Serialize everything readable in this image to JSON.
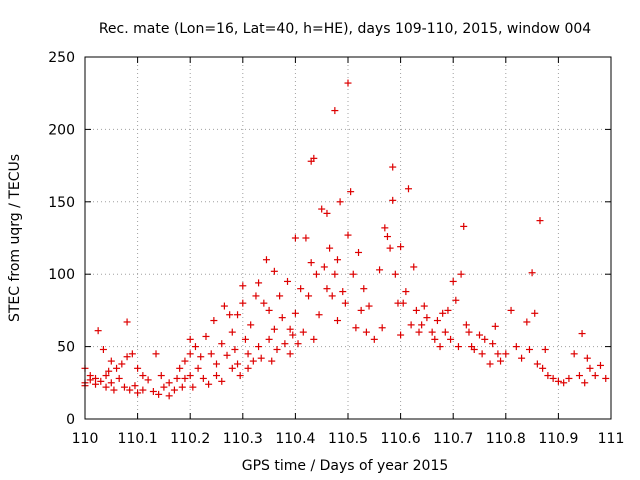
{
  "chart_data": {
    "type": "scatter",
    "title": "Rec. mate (Lon=16, Lat=40, h=HE), days 109-110, 2015, window 004",
    "xlabel": "GPS time / Days of year 2015",
    "ylabel": "STEC from uqrg / TECUs",
    "xlim": [
      110,
      111
    ],
    "ylim": [
      0,
      250
    ],
    "x_ticks": [
      110,
      110.1,
      110.2,
      110.3,
      110.4,
      110.5,
      110.6,
      110.7,
      110.8,
      110.9,
      111
    ],
    "x_tick_labels": [
      "110",
      "110.1",
      "110.2",
      "110.3",
      "110.4",
      "110.5",
      "110.6",
      "110.7",
      "110.8",
      "110.9",
      "111"
    ],
    "y_ticks": [
      0,
      50,
      100,
      150,
      200,
      250
    ],
    "y_tick_labels": [
      "0",
      "50",
      "100",
      "150",
      "200",
      "250"
    ],
    "grid": true,
    "marker": "plus",
    "color": "#dd0000",
    "points": [
      [
        110.0,
        35
      ],
      [
        110.0,
        25
      ],
      [
        110.0,
        23
      ],
      [
        110.01,
        30
      ],
      [
        110.01,
        27
      ],
      [
        110.02,
        24
      ],
      [
        110.02,
        28
      ],
      [
        110.025,
        61
      ],
      [
        110.03,
        26
      ],
      [
        110.035,
        48
      ],
      [
        110.04,
        22
      ],
      [
        110.04,
        30
      ],
      [
        110.045,
        33
      ],
      [
        110.05,
        40
      ],
      [
        110.05,
        25
      ],
      [
        110.055,
        20
      ],
      [
        110.06,
        35
      ],
      [
        110.065,
        28
      ],
      [
        110.07,
        38
      ],
      [
        110.075,
        22
      ],
      [
        110.08,
        67
      ],
      [
        110.08,
        43
      ],
      [
        110.085,
        20
      ],
      [
        110.09,
        45
      ],
      [
        110.095,
        23
      ],
      [
        110.1,
        35
      ],
      [
        110.1,
        18
      ],
      [
        110.11,
        30
      ],
      [
        110.11,
        20
      ],
      [
        110.12,
        27
      ],
      [
        110.13,
        19
      ],
      [
        110.135,
        45
      ],
      [
        110.14,
        17
      ],
      [
        110.145,
        30
      ],
      [
        110.15,
        22
      ],
      [
        110.16,
        16
      ],
      [
        110.16,
        25
      ],
      [
        110.17,
        20
      ],
      [
        110.175,
        28
      ],
      [
        110.18,
        35
      ],
      [
        110.185,
        22
      ],
      [
        110.19,
        40
      ],
      [
        110.19,
        28
      ],
      [
        110.2,
        55
      ],
      [
        110.2,
        45
      ],
      [
        110.2,
        30
      ],
      [
        110.205,
        22
      ],
      [
        110.21,
        50
      ],
      [
        110.215,
        35
      ],
      [
        110.22,
        43
      ],
      [
        110.225,
        28
      ],
      [
        110.23,
        57
      ],
      [
        110.235,
        24
      ],
      [
        110.24,
        45
      ],
      [
        110.245,
        68
      ],
      [
        110.25,
        38
      ],
      [
        110.25,
        30
      ],
      [
        110.26,
        52
      ],
      [
        110.26,
        26
      ],
      [
        110.265,
        78
      ],
      [
        110.27,
        44
      ],
      [
        110.275,
        72
      ],
      [
        110.28,
        60
      ],
      [
        110.28,
        35
      ],
      [
        110.285,
        48
      ],
      [
        110.29,
        72
      ],
      [
        110.29,
        38
      ],
      [
        110.295,
        30
      ],
      [
        110.3,
        92
      ],
      [
        110.3,
        80
      ],
      [
        110.305,
        55
      ],
      [
        110.31,
        45
      ],
      [
        110.31,
        35
      ],
      [
        110.315,
        65
      ],
      [
        110.32,
        40
      ],
      [
        110.325,
        85
      ],
      [
        110.33,
        94
      ],
      [
        110.33,
        50
      ],
      [
        110.335,
        42
      ],
      [
        110.34,
        80
      ],
      [
        110.345,
        110
      ],
      [
        110.35,
        75
      ],
      [
        110.35,
        55
      ],
      [
        110.355,
        40
      ],
      [
        110.36,
        102
      ],
      [
        110.36,
        62
      ],
      [
        110.365,
        48
      ],
      [
        110.37,
        85
      ],
      [
        110.375,
        70
      ],
      [
        110.38,
        52
      ],
      [
        110.385,
        95
      ],
      [
        110.39,
        62
      ],
      [
        110.39,
        45
      ],
      [
        110.395,
        58
      ],
      [
        110.4,
        125
      ],
      [
        110.4,
        73
      ],
      [
        110.405,
        52
      ],
      [
        110.41,
        90
      ],
      [
        110.415,
        60
      ],
      [
        110.42,
        125
      ],
      [
        110.425,
        85
      ],
      [
        110.43,
        178
      ],
      [
        110.43,
        108
      ],
      [
        110.435,
        180
      ],
      [
        110.435,
        55
      ],
      [
        110.44,
        100
      ],
      [
        110.445,
        72
      ],
      [
        110.45,
        145
      ],
      [
        110.455,
        105
      ],
      [
        110.46,
        142
      ],
      [
        110.46,
        90
      ],
      [
        110.465,
        118
      ],
      [
        110.47,
        85
      ],
      [
        110.475,
        213
      ],
      [
        110.475,
        100
      ],
      [
        110.48,
        110
      ],
      [
        110.48,
        68
      ],
      [
        110.485,
        150
      ],
      [
        110.49,
        88
      ],
      [
        110.495,
        80
      ],
      [
        110.5,
        232
      ],
      [
        110.5,
        127
      ],
      [
        110.505,
        157
      ],
      [
        110.51,
        100
      ],
      [
        110.515,
        63
      ],
      [
        110.52,
        115
      ],
      [
        110.525,
        75
      ],
      [
        110.53,
        90
      ],
      [
        110.535,
        60
      ],
      [
        110.54,
        78
      ],
      [
        110.55,
        55
      ],
      [
        110.56,
        103
      ],
      [
        110.565,
        63
      ],
      [
        110.57,
        132
      ],
      [
        110.575,
        126
      ],
      [
        110.58,
        118
      ],
      [
        110.585,
        174
      ],
      [
        110.585,
        151
      ],
      [
        110.59,
        100
      ],
      [
        110.595,
        80
      ],
      [
        110.6,
        119
      ],
      [
        110.6,
        58
      ],
      [
        110.605,
        80
      ],
      [
        110.61,
        88
      ],
      [
        110.615,
        159
      ],
      [
        110.62,
        65
      ],
      [
        110.625,
        105
      ],
      [
        110.63,
        75
      ],
      [
        110.635,
        60
      ],
      [
        110.64,
        65
      ],
      [
        110.645,
        78
      ],
      [
        110.65,
        70
      ],
      [
        110.66,
        60
      ],
      [
        110.665,
        55
      ],
      [
        110.67,
        68
      ],
      [
        110.675,
        50
      ],
      [
        110.68,
        73
      ],
      [
        110.685,
        60
      ],
      [
        110.69,
        75
      ],
      [
        110.695,
        55
      ],
      [
        110.7,
        95
      ],
      [
        110.705,
        82
      ],
      [
        110.71,
        50
      ],
      [
        110.715,
        100
      ],
      [
        110.72,
        133
      ],
      [
        110.725,
        65
      ],
      [
        110.73,
        60
      ],
      [
        110.735,
        50
      ],
      [
        110.74,
        48
      ],
      [
        110.75,
        58
      ],
      [
        110.755,
        45
      ],
      [
        110.76,
        55
      ],
      [
        110.77,
        38
      ],
      [
        110.775,
        52
      ],
      [
        110.78,
        64
      ],
      [
        110.785,
        45
      ],
      [
        110.79,
        40
      ],
      [
        110.8,
        45
      ],
      [
        110.81,
        75
      ],
      [
        110.82,
        50
      ],
      [
        110.83,
        42
      ],
      [
        110.84,
        67
      ],
      [
        110.845,
        48
      ],
      [
        110.85,
        101
      ],
      [
        110.855,
        73
      ],
      [
        110.86,
        38
      ],
      [
        110.865,
        137
      ],
      [
        110.87,
        35
      ],
      [
        110.875,
        48
      ],
      [
        110.88,
        30
      ],
      [
        110.89,
        28
      ],
      [
        110.9,
        26
      ],
      [
        110.91,
        25
      ],
      [
        110.92,
        28
      ],
      [
        110.93,
        45
      ],
      [
        110.94,
        30
      ],
      [
        110.945,
        59
      ],
      [
        110.95,
        25
      ],
      [
        110.955,
        42
      ],
      [
        110.96,
        35
      ],
      [
        110.97,
        30
      ],
      [
        110.98,
        37
      ],
      [
        110.99,
        28
      ]
    ]
  }
}
